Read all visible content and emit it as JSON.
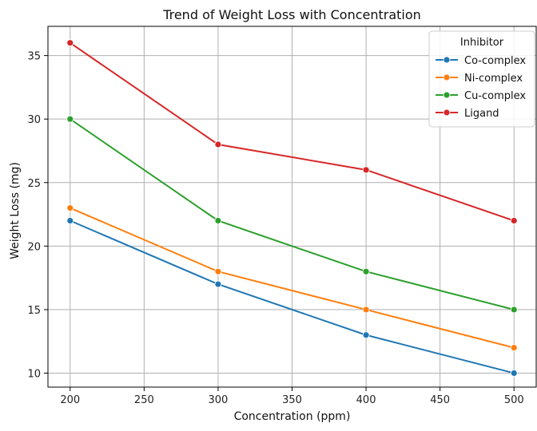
{
  "chart_data": {
    "type": "line",
    "title": "Trend of Weight Loss with Concentration",
    "xlabel": "Concentration (ppm)",
    "ylabel": "Weight Loss (mg)",
    "x": [
      200,
      300,
      400,
      500
    ],
    "xlim": [
      185,
      515
    ],
    "ylim": [
      8.9,
      37.3
    ],
    "xticks": [
      200,
      250,
      300,
      350,
      400,
      450,
      500
    ],
    "yticks": [
      10,
      15,
      20,
      25,
      30,
      35
    ],
    "grid": true,
    "legend": {
      "title": "Inhibitor",
      "placement": "top-right"
    },
    "series": [
      {
        "name": "Co-complex",
        "color": "#1f77b4",
        "values": [
          22,
          17,
          13,
          10
        ]
      },
      {
        "name": "Ni-complex",
        "color": "#ff7f0e",
        "values": [
          23,
          18,
          15,
          12
        ]
      },
      {
        "name": "Cu-complex",
        "color": "#2ca02c",
        "values": [
          30,
          22,
          18,
          15
        ]
      },
      {
        "name": "Ligand",
        "color": "#d62728",
        "values": [
          36,
          28,
          26,
          22
        ]
      }
    ]
  }
}
